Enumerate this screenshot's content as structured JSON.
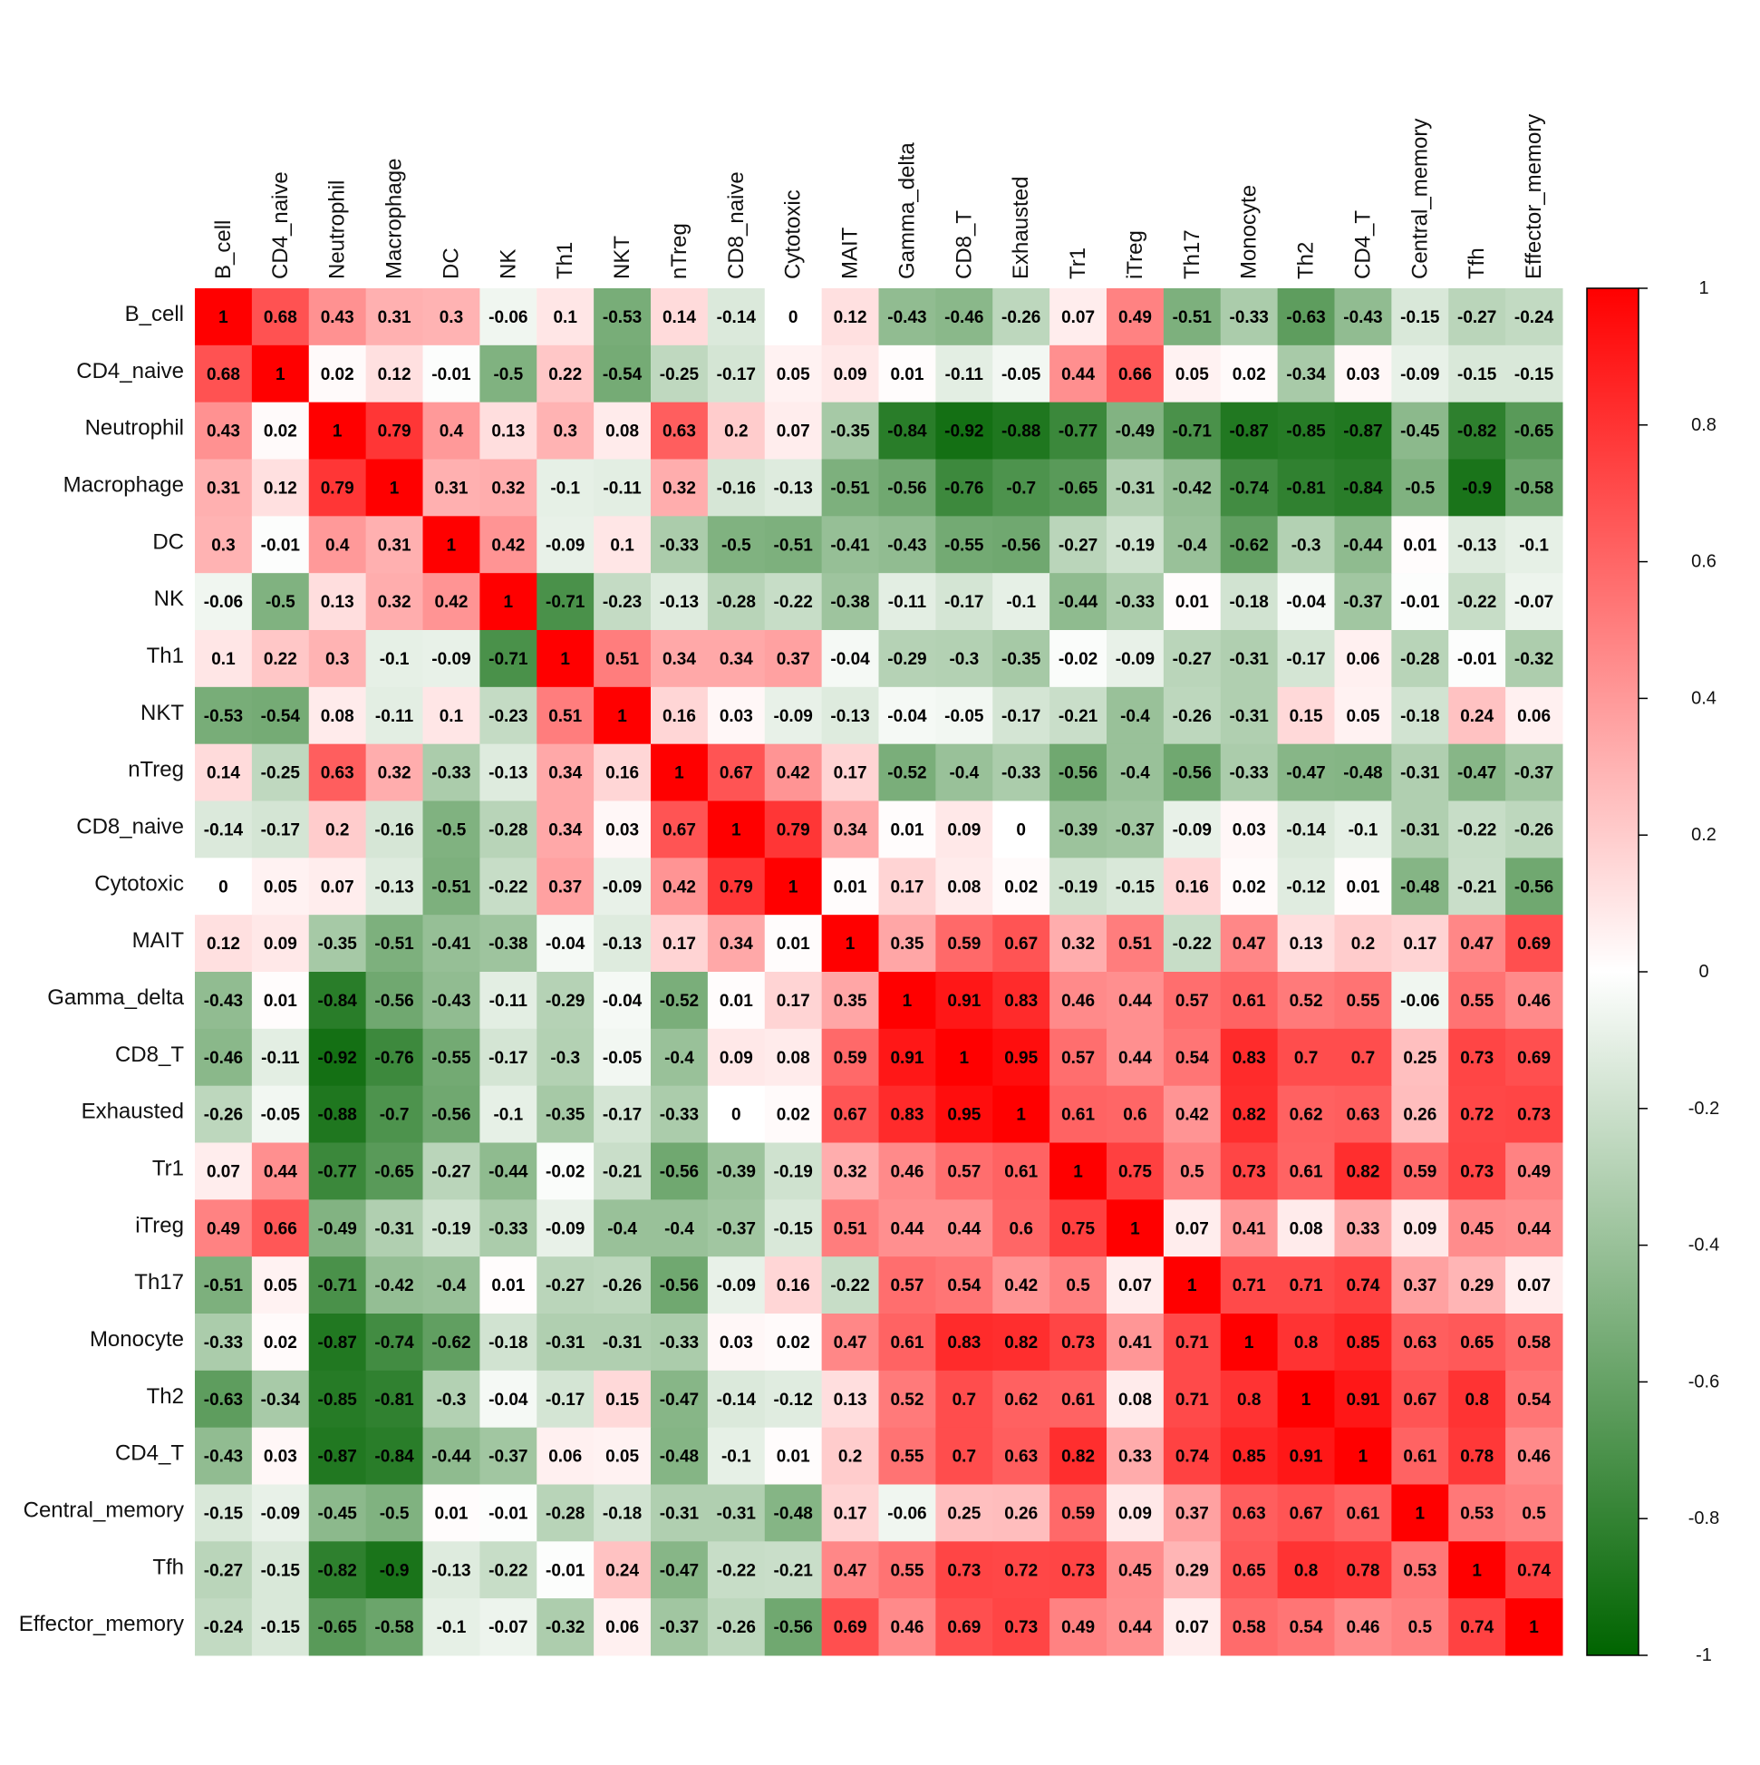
{
  "chart_data": {
    "type": "heatmap",
    "categories": [
      "B_cell",
      "CD4_naive",
      "Neutrophil",
      "Macrophage",
      "DC",
      "NK",
      "Th1",
      "NKT",
      "nTreg",
      "CD8_naive",
      "Cytotoxic",
      "MAIT",
      "Gamma_delta",
      "CD8_T",
      "Exhausted",
      "Tr1",
      "iTreg",
      "Th17",
      "Monocyte",
      "Th2",
      "CD4_T",
      "Central_memory",
      "Tfh",
      "Effector_memory"
    ],
    "values": [
      [
        1,
        0.68,
        0.43,
        0.31,
        0.3,
        -0.06,
        0.1,
        -0.53,
        0.14,
        -0.14,
        0,
        0.12,
        -0.43,
        -0.46,
        -0.26,
        0.07,
        0.49,
        -0.51,
        -0.33,
        -0.63,
        -0.43,
        -0.15,
        -0.27,
        -0.24
      ],
      [
        0.68,
        1,
        0.02,
        0.12,
        -0.01,
        -0.5,
        0.22,
        -0.54,
        -0.25,
        -0.17,
        0.05,
        0.09,
        0.01,
        -0.11,
        -0.05,
        0.44,
        0.66,
        0.05,
        0.02,
        -0.34,
        0.03,
        -0.09,
        -0.15,
        -0.15
      ],
      [
        0.43,
        0.02,
        1,
        0.79,
        0.4,
        0.13,
        0.3,
        0.08,
        0.63,
        0.2,
        0.07,
        -0.35,
        -0.84,
        -0.92,
        -0.88,
        -0.77,
        -0.49,
        -0.71,
        -0.87,
        -0.85,
        -0.87,
        -0.45,
        -0.82,
        -0.65
      ],
      [
        0.31,
        0.12,
        0.79,
        1,
        0.31,
        0.32,
        -0.1,
        -0.11,
        0.32,
        -0.16,
        -0.13,
        -0.51,
        -0.56,
        -0.76,
        -0.7,
        -0.65,
        -0.31,
        -0.42,
        -0.74,
        -0.81,
        -0.84,
        -0.5,
        -0.9,
        -0.58
      ],
      [
        0.3,
        -0.01,
        0.4,
        0.31,
        1,
        0.42,
        -0.09,
        0.1,
        -0.33,
        -0.5,
        -0.51,
        -0.41,
        -0.43,
        -0.55,
        -0.56,
        -0.27,
        -0.19,
        -0.4,
        -0.62,
        -0.3,
        -0.44,
        0.01,
        -0.13,
        -0.1
      ],
      [
        -0.06,
        -0.5,
        0.13,
        0.32,
        0.42,
        1,
        -0.71,
        -0.23,
        -0.13,
        -0.28,
        -0.22,
        -0.38,
        -0.11,
        -0.17,
        -0.1,
        -0.44,
        -0.33,
        0.01,
        -0.18,
        -0.04,
        -0.37,
        -0.01,
        -0.22,
        -0.07
      ],
      [
        0.1,
        0.22,
        0.3,
        -0.1,
        -0.09,
        -0.71,
        1,
        0.51,
        0.34,
        0.34,
        0.37,
        -0.04,
        -0.29,
        -0.3,
        -0.35,
        -0.02,
        -0.09,
        -0.27,
        -0.31,
        -0.17,
        0.06,
        -0.28,
        -0.01,
        -0.32
      ],
      [
        -0.53,
        -0.54,
        0.08,
        -0.11,
        0.1,
        -0.23,
        0.51,
        1,
        0.16,
        0.03,
        -0.09,
        -0.13,
        -0.04,
        -0.05,
        -0.17,
        -0.21,
        -0.4,
        -0.26,
        -0.31,
        0.15,
        0.05,
        -0.18,
        0.24,
        0.06
      ],
      [
        0.14,
        -0.25,
        0.63,
        0.32,
        -0.33,
        -0.13,
        0.34,
        0.16,
        1,
        0.67,
        0.42,
        0.17,
        -0.52,
        -0.4,
        -0.33,
        -0.56,
        -0.4,
        -0.56,
        -0.33,
        -0.47,
        -0.48,
        -0.31,
        -0.47,
        -0.37
      ],
      [
        -0.14,
        -0.17,
        0.2,
        -0.16,
        -0.5,
        -0.28,
        0.34,
        0.03,
        0.67,
        1,
        0.79,
        0.34,
        0.01,
        0.09,
        0,
        -0.39,
        -0.37,
        -0.09,
        0.03,
        -0.14,
        -0.1,
        -0.31,
        -0.22,
        -0.26
      ],
      [
        0,
        0.05,
        0.07,
        -0.13,
        -0.51,
        -0.22,
        0.37,
        -0.09,
        0.42,
        0.79,
        1,
        0.01,
        0.17,
        0.08,
        0.02,
        -0.19,
        -0.15,
        0.16,
        0.02,
        -0.12,
        0.01,
        -0.48,
        -0.21,
        -0.56
      ],
      [
        0.12,
        0.09,
        -0.35,
        -0.51,
        -0.41,
        -0.38,
        -0.04,
        -0.13,
        0.17,
        0.34,
        0.01,
        1,
        0.35,
        0.59,
        0.67,
        0.32,
        0.51,
        -0.22,
        0.47,
        0.13,
        0.2,
        0.17,
        0.47,
        0.69
      ],
      [
        -0.43,
        0.01,
        -0.84,
        -0.56,
        -0.43,
        -0.11,
        -0.29,
        -0.04,
        -0.52,
        0.01,
        0.17,
        0.35,
        1,
        0.91,
        0.83,
        0.46,
        0.44,
        0.57,
        0.61,
        0.52,
        0.55,
        -0.06,
        0.55,
        0.46
      ],
      [
        -0.46,
        -0.11,
        -0.92,
        -0.76,
        -0.55,
        -0.17,
        -0.3,
        -0.05,
        -0.4,
        0.09,
        0.08,
        0.59,
        0.91,
        1,
        0.95,
        0.57,
        0.44,
        0.54,
        0.83,
        0.7,
        0.7,
        0.25,
        0.73,
        0.69
      ],
      [
        -0.26,
        -0.05,
        -0.88,
        -0.7,
        -0.56,
        -0.1,
        -0.35,
        -0.17,
        -0.33,
        0,
        0.02,
        0.67,
        0.83,
        0.95,
        1,
        0.61,
        0.6,
        0.42,
        0.82,
        0.62,
        0.63,
        0.26,
        0.72,
        0.73
      ],
      [
        0.07,
        0.44,
        -0.77,
        -0.65,
        -0.27,
        -0.44,
        -0.02,
        -0.21,
        -0.56,
        -0.39,
        -0.19,
        0.32,
        0.46,
        0.57,
        0.61,
        1,
        0.75,
        0.5,
        0.73,
        0.61,
        0.82,
        0.59,
        0.73,
        0.49
      ],
      [
        0.49,
        0.66,
        -0.49,
        -0.31,
        -0.19,
        -0.33,
        -0.09,
        -0.4,
        -0.4,
        -0.37,
        -0.15,
        0.51,
        0.44,
        0.44,
        0.6,
        0.75,
        1,
        0.07,
        0.41,
        0.08,
        0.33,
        0.09,
        0.45,
        0.44
      ],
      [
        -0.51,
        0.05,
        -0.71,
        -0.42,
        -0.4,
        0.01,
        -0.27,
        -0.26,
        -0.56,
        -0.09,
        0.16,
        -0.22,
        0.57,
        0.54,
        0.42,
        0.5,
        0.07,
        1,
        0.71,
        0.71,
        0.74,
        0.37,
        0.29,
        0.07
      ],
      [
        -0.33,
        0.02,
        -0.87,
        -0.74,
        -0.62,
        -0.18,
        -0.31,
        -0.31,
        -0.33,
        0.03,
        0.02,
        0.47,
        0.61,
        0.83,
        0.82,
        0.73,
        0.41,
        0.71,
        1,
        0.8,
        0.85,
        0.63,
        0.65,
        0.58
      ],
      [
        -0.63,
        -0.34,
        -0.85,
        -0.81,
        -0.3,
        -0.04,
        -0.17,
        0.15,
        -0.47,
        -0.14,
        -0.12,
        0.13,
        0.52,
        0.7,
        0.62,
        0.61,
        0.08,
        0.71,
        0.8,
        1,
        0.91,
        0.67,
        0.8,
        0.54
      ],
      [
        -0.43,
        0.03,
        -0.87,
        -0.84,
        -0.44,
        -0.37,
        0.06,
        0.05,
        -0.48,
        -0.1,
        0.01,
        0.2,
        0.55,
        0.7,
        0.63,
        0.82,
        0.33,
        0.74,
        0.85,
        0.91,
        1,
        0.61,
        0.78,
        0.46
      ],
      [
        -0.15,
        -0.09,
        -0.45,
        -0.5,
        0.01,
        -0.01,
        -0.28,
        -0.18,
        -0.31,
        -0.31,
        -0.48,
        0.17,
        -0.06,
        0.25,
        0.26,
        0.59,
        0.09,
        0.37,
        0.63,
        0.67,
        0.61,
        1,
        0.53,
        0.5
      ],
      [
        -0.27,
        -0.15,
        -0.82,
        -0.9,
        -0.13,
        -0.22,
        -0.01,
        0.24,
        -0.47,
        -0.22,
        -0.21,
        0.47,
        0.55,
        0.73,
        0.72,
        0.73,
        0.45,
        0.29,
        0.65,
        0.8,
        0.78,
        0.53,
        1,
        0.74
      ],
      [
        -0.24,
        -0.15,
        -0.65,
        -0.58,
        -0.1,
        -0.07,
        -0.32,
        0.06,
        -0.37,
        -0.26,
        -0.56,
        0.69,
        0.46,
        0.69,
        0.73,
        0.49,
        0.44,
        0.07,
        0.58,
        0.54,
        0.46,
        0.5,
        0.74,
        1
      ]
    ],
    "zlim": [
      -1,
      1
    ],
    "colorbar_ticks": [
      1,
      0.8,
      0.6,
      0.4,
      0.2,
      0,
      -0.2,
      -0.4,
      -0.6,
      -0.8,
      -1
    ],
    "colors": {
      "low": "#006400",
      "mid": "#ffffff",
      "high": "#ff0000"
    }
  }
}
